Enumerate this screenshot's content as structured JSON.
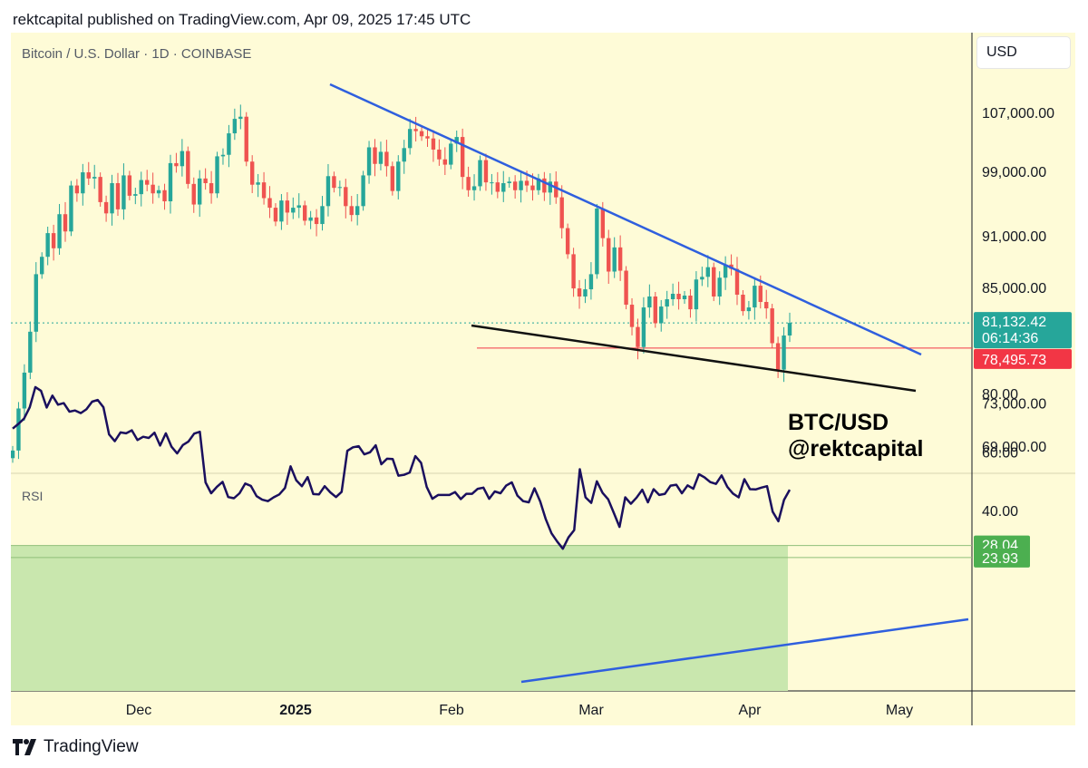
{
  "header": {
    "published_line": "rektcapital published on TradingView.com, Apr 09, 2025 17:45 UTC"
  },
  "chart_data": {
    "type": "candlestick",
    "title": "Bitcoin / U.S. Dollar · 1D · COINBASE",
    "currency": "USD",
    "watermark": [
      "BTC/USD",
      "@rektcapital"
    ],
    "y_ticks": [
      "107,000.00",
      "99,000.00",
      "91,000.00",
      "85,000.00",
      "73,000.00",
      "69,000.00"
    ],
    "y_tick_values": [
      107000,
      99000,
      91000,
      85000,
      73000,
      69000
    ],
    "price_labels": [
      {
        "name": "last-price",
        "value": 81132.42,
        "text": "81,132.42",
        "sub": "06:14:36",
        "color": "#26a69a"
      },
      {
        "name": "horizontal-level",
        "value": 78495.73,
        "text": "78,495.73",
        "color": "#f23645"
      }
    ],
    "x_ticks": [
      "Dec",
      "2025",
      "Feb",
      "Mar",
      "Apr",
      "May"
    ],
    "price_series_close": [
      68600,
      72500,
      76000,
      80200,
      86500,
      88500,
      91300,
      89500,
      93600,
      91500,
      97200,
      96200,
      98900,
      98100,
      98300,
      95100,
      93700,
      97500,
      94200,
      98500,
      95900,
      96100,
      97900,
      97300,
      96200,
      96600,
      95200,
      100100,
      99700,
      101700,
      97400,
      94800,
      98100,
      97500,
      96200,
      101000,
      101200,
      104100,
      106100,
      106400,
      100300,
      97300,
      97600,
      95600,
      94400,
      92700,
      95300,
      93800,
      94400,
      94700,
      92800,
      93200,
      92400,
      94600,
      98400,
      96900,
      97000,
      94600,
      93500,
      94600,
      98500,
      102200,
      100000,
      101600,
      99700,
      96500,
      100300,
      102100,
      104700,
      104400,
      103700,
      103400,
      101900,
      100600,
      99900,
      102700,
      103600,
      98300,
      96600,
      97100,
      100500,
      97600,
      97600,
      96400,
      97500,
      97700,
      96600,
      97800,
      97200,
      96600,
      98100,
      96300,
      97700,
      95700,
      91900,
      88800,
      84900,
      84000,
      84800,
      86500,
      94300,
      90700,
      86800,
      89600,
      86900,
      83100,
      80700,
      78600,
      82800,
      84000,
      81100,
      82900,
      83700,
      84300,
      83700,
      84100,
      82600,
      85900,
      86200,
      87300,
      84000,
      86100,
      87600,
      87100,
      84200,
      82400,
      82800,
      85200,
      83400,
      82700,
      79000,
      76300,
      79800,
      81132
    ]
  },
  "rsi_chart": {
    "type": "line",
    "label": "RSI",
    "y_ticks": [
      "80.00",
      "60.00",
      "40.00"
    ],
    "y_tick_values": [
      80,
      60,
      40
    ],
    "oversold_box": {
      "upper": 28.04,
      "lower": 23.93,
      "upper_text": "28.04",
      "lower_text": "23.93",
      "color": "#4caf50"
    },
    "values": [
      68.0,
      69.6,
      71.4,
      75.3,
      82.2,
      80.9,
      75.2,
      79.3,
      76.2,
      76.7,
      73.8,
      74.2,
      73.3,
      74.6,
      77.2,
      77.8,
      75.3,
      66.0,
      63.7,
      66.7,
      66.4,
      67.4,
      64.1,
      65.2,
      64.8,
      66.6,
      62.2,
      66.4,
      61.8,
      59.5,
      62.4,
      63.6,
      66.3,
      66.9,
      49.6,
      45.9,
      48.1,
      49.8,
      44.6,
      44.2,
      45.9,
      49.2,
      48.4,
      44.9,
      43.7,
      43.2,
      44.5,
      45.5,
      47.7,
      55.1,
      50.3,
      48.3,
      51.4,
      45.6,
      45.5,
      48.3,
      46.2,
      44.6,
      46.4,
      60.4,
      61.6,
      62.0,
      59.2,
      59.9,
      62.3,
      55.8,
      57.7,
      57.6,
      51.9,
      52.2,
      53.0,
      58.6,
      56.3,
      48.1,
      44.0,
      45.3,
      45.3,
      45.3,
      46.3,
      43.9,
      45.7,
      45.7,
      47.4,
      47.8,
      44.0,
      46.5,
      45.9,
      48.5,
      49.6,
      45.1,
      43.2,
      42.8,
      47.6,
      43.1,
      37.0,
      32.2,
      29.4,
      26.9,
      30.8,
      33.3,
      54.1,
      44.5,
      42.6,
      50.0,
      46.0,
      43.8,
      39.1,
      34.4,
      44.5,
      42.3,
      44.4,
      47.1,
      42.8,
      47.3,
      45.3,
      45.7,
      48.5,
      48.8,
      45.9,
      48.6,
      47.4,
      52.4,
      51.3,
      49.7,
      49.1,
      52.0,
      48.1,
      45.8,
      44.5,
      50.7,
      47.3,
      47.2,
      47.8,
      48.3,
      39.6,
      36.3,
      43.6,
      47.1
    ]
  },
  "footer": {
    "brand": "TradingView"
  }
}
